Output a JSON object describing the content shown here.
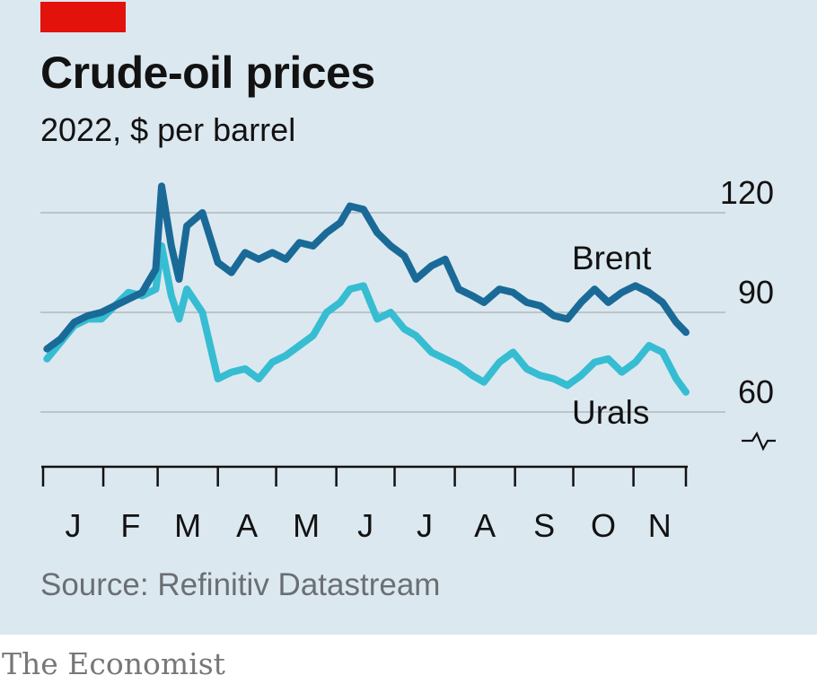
{
  "header": {
    "title": "Crude-oil prices",
    "subtitle": "2022, $ per barrel"
  },
  "footer": {
    "source": "Source: Refinitiv Datastream",
    "brand": "The Economist"
  },
  "colors": {
    "background": "#dce8f0",
    "accent": "#e3120b",
    "brent": "#1a6a98",
    "urals": "#36bdd2",
    "grid": "#b9c4cb"
  },
  "chart_data": {
    "type": "line",
    "y_axis": {
      "min": 60,
      "max": 120,
      "ticks": [
        120,
        90,
        60
      ],
      "broken_axis": true,
      "position": "right"
    },
    "x_axis": {
      "start": "2022-01-01",
      "end": "2022-11-28",
      "tick_labels": [
        "J",
        "F",
        "M",
        "A",
        "M",
        "J",
        "J",
        "A",
        "S",
        "O",
        "N"
      ]
    },
    "series": [
      {
        "name": "Brent",
        "color": "#1a6a98",
        "x": [
          "2022-01-03",
          "2022-01-10",
          "2022-01-17",
          "2022-01-24",
          "2022-01-31",
          "2022-02-07",
          "2022-02-14",
          "2022-02-21",
          "2022-02-28",
          "2022-03-03",
          "2022-03-08",
          "2022-03-12",
          "2022-03-16",
          "2022-03-24",
          "2022-04-01",
          "2022-04-08",
          "2022-04-15",
          "2022-04-22",
          "2022-04-29",
          "2022-05-06",
          "2022-05-13",
          "2022-05-20",
          "2022-05-27",
          "2022-06-03",
          "2022-06-08",
          "2022-06-15",
          "2022-06-22",
          "2022-06-29",
          "2022-07-06",
          "2022-07-12",
          "2022-07-20",
          "2022-07-27",
          "2022-08-03",
          "2022-08-10",
          "2022-08-16",
          "2022-08-24",
          "2022-08-31",
          "2022-09-07",
          "2022-09-14",
          "2022-09-21",
          "2022-09-28",
          "2022-10-05",
          "2022-10-12",
          "2022-10-19",
          "2022-10-26",
          "2022-11-02",
          "2022-11-09",
          "2022-11-16",
          "2022-11-23",
          "2022-11-28"
        ],
        "values": [
          79,
          82,
          87,
          89,
          90,
          92,
          94,
          96,
          103,
          128,
          110,
          100,
          116,
          120,
          105,
          102,
          108,
          106,
          108,
          106,
          111,
          110,
          114,
          117,
          122,
          121,
          114,
          110,
          107,
          100,
          104,
          106,
          97,
          95,
          93,
          97,
          96,
          93,
          92,
          89,
          88,
          93,
          97,
          93,
          96,
          98,
          96,
          93,
          87,
          84
        ]
      },
      {
        "name": "Urals",
        "color": "#36bdd2",
        "x": [
          "2022-01-03",
          "2022-01-10",
          "2022-01-17",
          "2022-01-24",
          "2022-01-31",
          "2022-02-07",
          "2022-02-14",
          "2022-02-21",
          "2022-02-28",
          "2022-03-03",
          "2022-03-08",
          "2022-03-12",
          "2022-03-16",
          "2022-03-24",
          "2022-04-01",
          "2022-04-08",
          "2022-04-15",
          "2022-04-22",
          "2022-04-29",
          "2022-05-06",
          "2022-05-13",
          "2022-05-20",
          "2022-05-27",
          "2022-06-03",
          "2022-06-08",
          "2022-06-15",
          "2022-06-22",
          "2022-06-29",
          "2022-07-06",
          "2022-07-12",
          "2022-07-20",
          "2022-07-27",
          "2022-08-03",
          "2022-08-10",
          "2022-08-16",
          "2022-08-24",
          "2022-08-31",
          "2022-09-07",
          "2022-09-14",
          "2022-09-21",
          "2022-09-28",
          "2022-10-05",
          "2022-10-12",
          "2022-10-19",
          "2022-10-26",
          "2022-11-02",
          "2022-11-09",
          "2022-11-16",
          "2022-11-23",
          "2022-11-28"
        ],
        "values": [
          76,
          81,
          86,
          88,
          88,
          92,
          96,
          95,
          97,
          110,
          95,
          88,
          97,
          90,
          70,
          72,
          73,
          70,
          75,
          77,
          80,
          83,
          90,
          93,
          97,
          98,
          88,
          90,
          85,
          83,
          78,
          76,
          74,
          71,
          69,
          75,
          78,
          73,
          71,
          70,
          68,
          71,
          75,
          76,
          72,
          75,
          80,
          78,
          70,
          66
        ]
      }
    ]
  }
}
